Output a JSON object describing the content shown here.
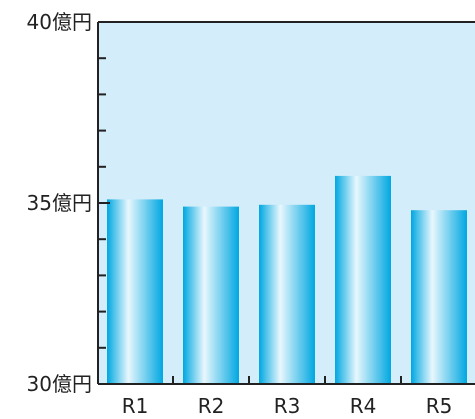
{
  "chart_data": {
    "type": "bar",
    "categories": [
      "R1",
      "R2",
      "R3",
      "R4",
      "R5"
    ],
    "values": [
      35.1,
      34.9,
      34.95,
      35.75,
      34.8
    ],
    "ylim": [
      30,
      40
    ],
    "y_major_ticks": [
      {
        "value": 30,
        "label": "30億円"
      },
      {
        "value": 35,
        "label": "35億円"
      },
      {
        "value": 40,
        "label": "40億円"
      }
    ],
    "y_minor_step": 1,
    "grid": false,
    "legend": "none",
    "title": "",
    "xlabel": "",
    "ylabel": "",
    "colors": {
      "plot_background": "#D4EDFA",
      "bar_edge": "#00A7E1",
      "bar_highlight": "#E8F7FD",
      "axis": "#222222"
    }
  }
}
